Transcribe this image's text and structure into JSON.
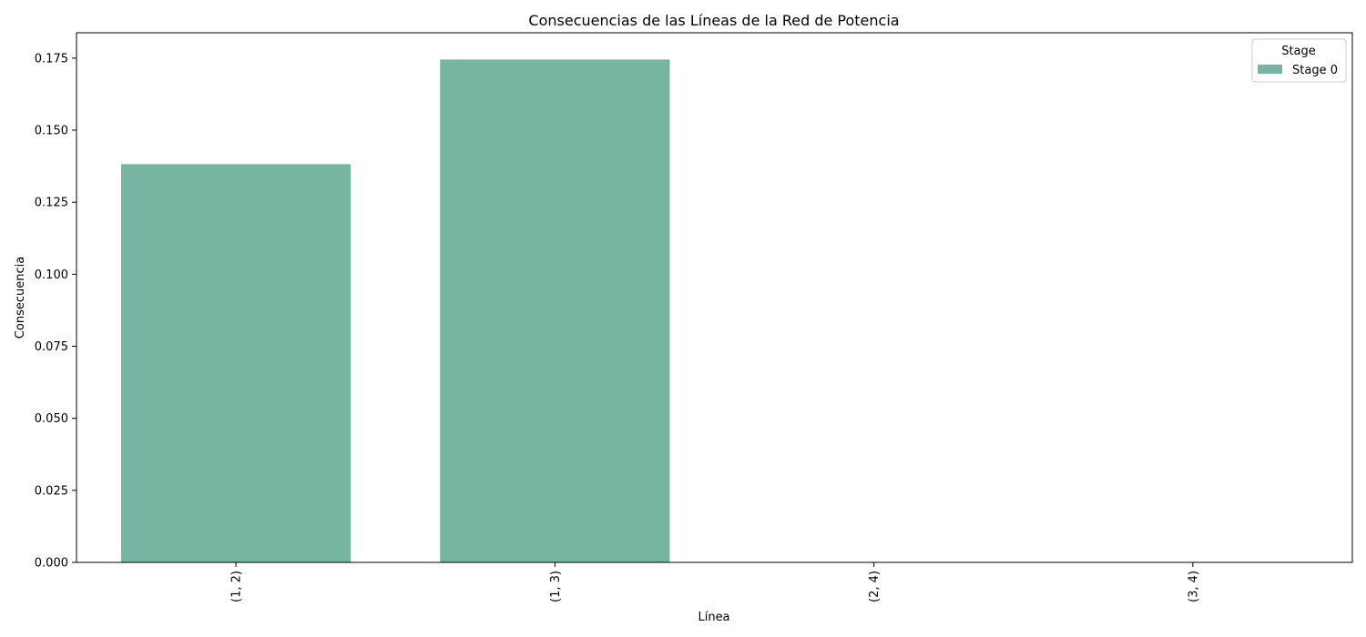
{
  "chart_data": {
    "type": "bar",
    "title": "Consecuencias de las Líneas de la Red de Potencia",
    "xlabel": "Línea",
    "ylabel": "Consecuencia",
    "categories": [
      "(1, 2)",
      "(1, 3)",
      "(2, 4)",
      "(3, 4)"
    ],
    "series": [
      {
        "name": "Stage 0",
        "values": [
          0.1382,
          0.1745,
          0.0,
          0.0
        ],
        "color": "#75b5a1"
      }
    ],
    "ylim": [
      0,
      0.1838
    ],
    "yticks": [
      "0.000",
      "0.025",
      "0.050",
      "0.075",
      "0.100",
      "0.125",
      "0.150",
      "0.175"
    ],
    "ytick_values": [
      0,
      0.025,
      0.05,
      0.075,
      0.1,
      0.125,
      0.15,
      0.175
    ],
    "legend": {
      "title": "Stage",
      "placement": "top-right"
    },
    "grid": false
  }
}
